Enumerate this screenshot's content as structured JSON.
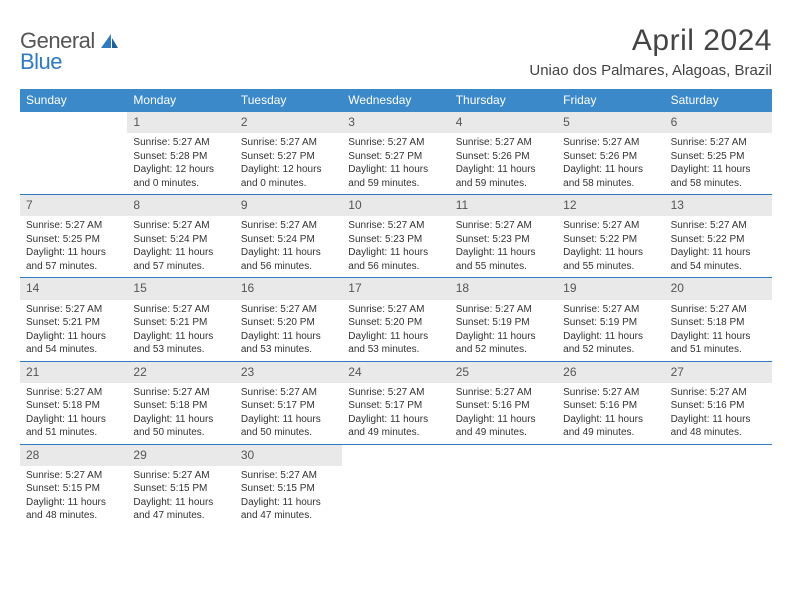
{
  "logo": {
    "primary": "General",
    "secondary": "Blue"
  },
  "header": {
    "title": "April 2024",
    "location": "Uniao dos Palmares, Alagoas, Brazil"
  },
  "colors": {
    "header_bg": "#3b89c9",
    "header_text": "#ffffff",
    "daynum_bg": "#e9e9e9",
    "week_border": "#2f7ac0",
    "logo_blue": "#2f7ac0",
    "body_text": "#333333"
  },
  "calendar": {
    "days_of_week": [
      "Sunday",
      "Monday",
      "Tuesday",
      "Wednesday",
      "Thursday",
      "Friday",
      "Saturday"
    ],
    "weeks": [
      [
        {
          "n": "",
          "sr": "",
          "ss": "",
          "dl1": "",
          "dl2": ""
        },
        {
          "n": "1",
          "sr": "Sunrise: 5:27 AM",
          "ss": "Sunset: 5:28 PM",
          "dl1": "Daylight: 12 hours",
          "dl2": "and 0 minutes."
        },
        {
          "n": "2",
          "sr": "Sunrise: 5:27 AM",
          "ss": "Sunset: 5:27 PM",
          "dl1": "Daylight: 12 hours",
          "dl2": "and 0 minutes."
        },
        {
          "n": "3",
          "sr": "Sunrise: 5:27 AM",
          "ss": "Sunset: 5:27 PM",
          "dl1": "Daylight: 11 hours",
          "dl2": "and 59 minutes."
        },
        {
          "n": "4",
          "sr": "Sunrise: 5:27 AM",
          "ss": "Sunset: 5:26 PM",
          "dl1": "Daylight: 11 hours",
          "dl2": "and 59 minutes."
        },
        {
          "n": "5",
          "sr": "Sunrise: 5:27 AM",
          "ss": "Sunset: 5:26 PM",
          "dl1": "Daylight: 11 hours",
          "dl2": "and 58 minutes."
        },
        {
          "n": "6",
          "sr": "Sunrise: 5:27 AM",
          "ss": "Sunset: 5:25 PM",
          "dl1": "Daylight: 11 hours",
          "dl2": "and 58 minutes."
        }
      ],
      [
        {
          "n": "7",
          "sr": "Sunrise: 5:27 AM",
          "ss": "Sunset: 5:25 PM",
          "dl1": "Daylight: 11 hours",
          "dl2": "and 57 minutes."
        },
        {
          "n": "8",
          "sr": "Sunrise: 5:27 AM",
          "ss": "Sunset: 5:24 PM",
          "dl1": "Daylight: 11 hours",
          "dl2": "and 57 minutes."
        },
        {
          "n": "9",
          "sr": "Sunrise: 5:27 AM",
          "ss": "Sunset: 5:24 PM",
          "dl1": "Daylight: 11 hours",
          "dl2": "and 56 minutes."
        },
        {
          "n": "10",
          "sr": "Sunrise: 5:27 AM",
          "ss": "Sunset: 5:23 PM",
          "dl1": "Daylight: 11 hours",
          "dl2": "and 56 minutes."
        },
        {
          "n": "11",
          "sr": "Sunrise: 5:27 AM",
          "ss": "Sunset: 5:23 PM",
          "dl1": "Daylight: 11 hours",
          "dl2": "and 55 minutes."
        },
        {
          "n": "12",
          "sr": "Sunrise: 5:27 AM",
          "ss": "Sunset: 5:22 PM",
          "dl1": "Daylight: 11 hours",
          "dl2": "and 55 minutes."
        },
        {
          "n": "13",
          "sr": "Sunrise: 5:27 AM",
          "ss": "Sunset: 5:22 PM",
          "dl1": "Daylight: 11 hours",
          "dl2": "and 54 minutes."
        }
      ],
      [
        {
          "n": "14",
          "sr": "Sunrise: 5:27 AM",
          "ss": "Sunset: 5:21 PM",
          "dl1": "Daylight: 11 hours",
          "dl2": "and 54 minutes."
        },
        {
          "n": "15",
          "sr": "Sunrise: 5:27 AM",
          "ss": "Sunset: 5:21 PM",
          "dl1": "Daylight: 11 hours",
          "dl2": "and 53 minutes."
        },
        {
          "n": "16",
          "sr": "Sunrise: 5:27 AM",
          "ss": "Sunset: 5:20 PM",
          "dl1": "Daylight: 11 hours",
          "dl2": "and 53 minutes."
        },
        {
          "n": "17",
          "sr": "Sunrise: 5:27 AM",
          "ss": "Sunset: 5:20 PM",
          "dl1": "Daylight: 11 hours",
          "dl2": "and 53 minutes."
        },
        {
          "n": "18",
          "sr": "Sunrise: 5:27 AM",
          "ss": "Sunset: 5:19 PM",
          "dl1": "Daylight: 11 hours",
          "dl2": "and 52 minutes."
        },
        {
          "n": "19",
          "sr": "Sunrise: 5:27 AM",
          "ss": "Sunset: 5:19 PM",
          "dl1": "Daylight: 11 hours",
          "dl2": "and 52 minutes."
        },
        {
          "n": "20",
          "sr": "Sunrise: 5:27 AM",
          "ss": "Sunset: 5:18 PM",
          "dl1": "Daylight: 11 hours",
          "dl2": "and 51 minutes."
        }
      ],
      [
        {
          "n": "21",
          "sr": "Sunrise: 5:27 AM",
          "ss": "Sunset: 5:18 PM",
          "dl1": "Daylight: 11 hours",
          "dl2": "and 51 minutes."
        },
        {
          "n": "22",
          "sr": "Sunrise: 5:27 AM",
          "ss": "Sunset: 5:18 PM",
          "dl1": "Daylight: 11 hours",
          "dl2": "and 50 minutes."
        },
        {
          "n": "23",
          "sr": "Sunrise: 5:27 AM",
          "ss": "Sunset: 5:17 PM",
          "dl1": "Daylight: 11 hours",
          "dl2": "and 50 minutes."
        },
        {
          "n": "24",
          "sr": "Sunrise: 5:27 AM",
          "ss": "Sunset: 5:17 PM",
          "dl1": "Daylight: 11 hours",
          "dl2": "and 49 minutes."
        },
        {
          "n": "25",
          "sr": "Sunrise: 5:27 AM",
          "ss": "Sunset: 5:16 PM",
          "dl1": "Daylight: 11 hours",
          "dl2": "and 49 minutes."
        },
        {
          "n": "26",
          "sr": "Sunrise: 5:27 AM",
          "ss": "Sunset: 5:16 PM",
          "dl1": "Daylight: 11 hours",
          "dl2": "and 49 minutes."
        },
        {
          "n": "27",
          "sr": "Sunrise: 5:27 AM",
          "ss": "Sunset: 5:16 PM",
          "dl1": "Daylight: 11 hours",
          "dl2": "and 48 minutes."
        }
      ],
      [
        {
          "n": "28",
          "sr": "Sunrise: 5:27 AM",
          "ss": "Sunset: 5:15 PM",
          "dl1": "Daylight: 11 hours",
          "dl2": "and 48 minutes."
        },
        {
          "n": "29",
          "sr": "Sunrise: 5:27 AM",
          "ss": "Sunset: 5:15 PM",
          "dl1": "Daylight: 11 hours",
          "dl2": "and 47 minutes."
        },
        {
          "n": "30",
          "sr": "Sunrise: 5:27 AM",
          "ss": "Sunset: 5:15 PM",
          "dl1": "Daylight: 11 hours",
          "dl2": "and 47 minutes."
        },
        {
          "n": "",
          "sr": "",
          "ss": "",
          "dl1": "",
          "dl2": ""
        },
        {
          "n": "",
          "sr": "",
          "ss": "",
          "dl1": "",
          "dl2": ""
        },
        {
          "n": "",
          "sr": "",
          "ss": "",
          "dl1": "",
          "dl2": ""
        },
        {
          "n": "",
          "sr": "",
          "ss": "",
          "dl1": "",
          "dl2": ""
        }
      ]
    ]
  }
}
